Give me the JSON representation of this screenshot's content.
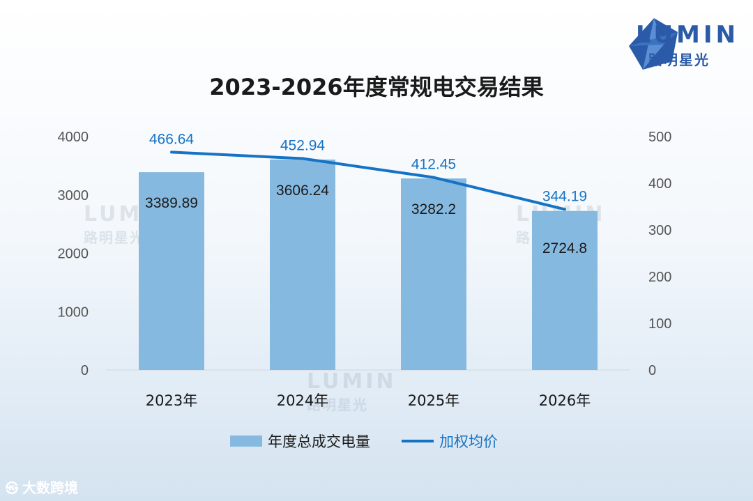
{
  "brand": {
    "name": "LUMIN",
    "sub": "路明星光"
  },
  "source_mark": {
    "icon": "logo-icon",
    "text": "大数跨境"
  },
  "colors": {
    "bar": "#86b9e0",
    "line": "#1673c4",
    "text": "#1a1a1a",
    "axis": "#555555"
  },
  "chart_data": {
    "type": "bar",
    "title": "2023-2026年度常规电交易结果",
    "categories": [
      "2023年",
      "2024年",
      "2025年",
      "2026年"
    ],
    "series": [
      {
        "name": "年度总成交电量",
        "type": "bar",
        "axis": "left",
        "values": [
          3389.89,
          3606.24,
          3282.2,
          2724.8
        ],
        "labels": [
          "3389.89",
          "3606.24",
          "3282.2",
          "2724.8"
        ]
      },
      {
        "name": "加权均价",
        "type": "line",
        "axis": "right",
        "values": [
          466.64,
          452.94,
          412.45,
          344.19
        ],
        "labels": [
          "466.64",
          "452.94",
          "412.45",
          "344.19"
        ]
      }
    ],
    "y_left": {
      "min": 0,
      "max": 4000,
      "ticks": [
        "0",
        "1000",
        "2000",
        "3000",
        "4000"
      ]
    },
    "y_right": {
      "min": 0,
      "max": 500,
      "ticks": [
        "0",
        "100",
        "200",
        "300",
        "400",
        "500"
      ]
    },
    "grid": false,
    "legend": "bottom"
  }
}
